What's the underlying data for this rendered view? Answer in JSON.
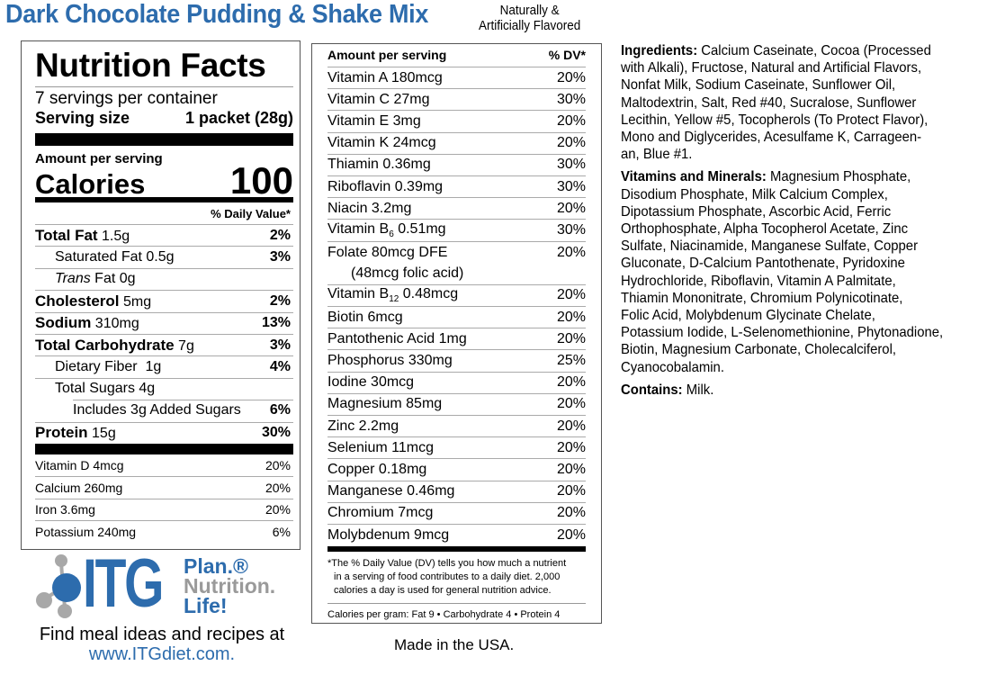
{
  "product": {
    "title": "Dark Chocolate Pudding & Shake Mix",
    "flavor_line1": "Naturally &",
    "flavor_line2": "Artificially Flavored"
  },
  "colors": {
    "brand_blue": "#2d6cad",
    "logo_gray": "#a0a0a0"
  },
  "facts": {
    "title": "Nutrition Facts",
    "servings": "7 servings per container",
    "serving_size_label": "Serving size",
    "serving_size_value": "1 packet (28g)",
    "amount_per_serving": "Amount per serving",
    "calories_label": "Calories",
    "calories_value": "100",
    "dv_header": "% Daily Value*",
    "nutrients": [
      {
        "name": "Total Fat",
        "amount": "1.5g",
        "dv": "2%",
        "bold": true,
        "indent": 0
      },
      {
        "name": "Saturated Fat",
        "amount": "0.5g",
        "dv": "3%",
        "bold": false,
        "indent": 1
      },
      {
        "name": "Trans",
        "amount": "Fat 0g",
        "dv": "",
        "bold": false,
        "indent": 1,
        "italic": true
      },
      {
        "name": "Cholesterol",
        "amount": "5mg",
        "dv": "2%",
        "bold": true,
        "indent": 0
      },
      {
        "name": "Sodium",
        "amount": "310mg",
        "dv": "13%",
        "bold": true,
        "indent": 0
      },
      {
        "name": "Total Carbohydrate",
        "amount": "7g",
        "dv": "3%",
        "bold": true,
        "indent": 0
      },
      {
        "name": "Dietary Fiber",
        "amount": " 1g",
        "dv": "4%",
        "bold": false,
        "indent": 1
      },
      {
        "name": "Total Sugars",
        "amount": "4g",
        "dv": "",
        "bold": false,
        "indent": 1
      },
      {
        "name": "Includes 3g Added Sugars",
        "amount": "",
        "dv": "6%",
        "bold": false,
        "indent": 2
      },
      {
        "name": "Protein",
        "amount": "15g",
        "dv": "30%",
        "bold": true,
        "indent": 0
      }
    ],
    "vitamins": [
      {
        "name": "Vitamin D 4mcg",
        "dv": "20%"
      },
      {
        "name": "Calcium 260mg",
        "dv": "20%"
      },
      {
        "name": "Iron 3.6mg",
        "dv": "20%"
      },
      {
        "name": "Potassium 240mg",
        "dv": "6%"
      }
    ]
  },
  "supplement": {
    "header_left": "Amount per serving",
    "header_right": "% DV*",
    "rows": [
      {
        "name": "Vitamin A  180mcg",
        "dv": "20%"
      },
      {
        "name": "Vitamin C  27mg",
        "dv": "30%"
      },
      {
        "name": "Vitamin E  3mg",
        "dv": "20%"
      },
      {
        "name": "Vitamin K  24mcg",
        "dv": "20%"
      },
      {
        "name": "Thiamin  0.36mg",
        "dv": "30%"
      },
      {
        "name": "Riboflavin  0.39mg",
        "dv": "30%"
      },
      {
        "name": "Niacin  3.2mg",
        "dv": "20%"
      },
      {
        "name": "Vitamin B",
        "sub": "6",
        "rest": " 0.51mg",
        "dv": "30%"
      },
      {
        "name": "Folate 80mcg DFE",
        "line2": "(48mcg folic acid)",
        "dv": "20%"
      },
      {
        "name": "Vitamin B",
        "sub": "12",
        "rest": " 0.48mcg",
        "dv": "20%"
      },
      {
        "name": "Biotin  6mcg",
        "dv": "20%"
      },
      {
        "name": "Pantothenic Acid  1mg",
        "dv": "20%"
      },
      {
        "name": "Phosphorus  330mg",
        "dv": "25%"
      },
      {
        "name": "Iodine  30mcg",
        "dv": "20%"
      },
      {
        "name": "Magnesium  85mg",
        "dv": "20%"
      },
      {
        "name": "Zinc  2.2mg",
        "dv": "20%"
      },
      {
        "name": "Selenium  11mcg",
        "dv": "20%"
      },
      {
        "name": "Copper  0.18mg",
        "dv": "20%"
      },
      {
        "name": "Manganese  0.46mg",
        "dv": "20%"
      },
      {
        "name": "Chromium  7mcg",
        "dv": "20%"
      },
      {
        "name": "Molybdenum  9mcg",
        "dv": "20%"
      }
    ],
    "footnote": [
      "*The % Daily Value (DV) tells you how much a nutrient",
      "in a serving of food contributes to a daily diet. 2,000",
      "calories a day is used for general nutrition advice."
    ],
    "calories_per_gram": "Calories per gram: Fat 9 • Carbohydrate 4 • Protein 4"
  },
  "ingredients": {
    "label": "Ingredients:",
    "lines": [
      " Calcium Caseinate, Cocoa (Processed",
      "with Alkali), Fructose, Natural and Artificial Flavors,",
      "Nonfat Milk, Sodium Caseinate, Sunflower Oil,",
      "Maltodextrin, Salt, Red #40, Sucralose, Sunflower",
      "Lecithin, Yellow #5, Tocopherols (To Protect Flavor),",
      "Mono and Diglycerides, Acesulfame K, Carrageen-",
      "an, Blue #1."
    ],
    "vm_label": "Vitamins and Minerals:",
    "vm_lines": [
      " Magnesium Phosphate,",
      "Disodium Phosphate, Milk Calcium Complex,",
      "Dipotassium Phosphate, Ascorbic Acid, Ferric",
      "Orthophosphate, Alpha Tocopherol Acetate, Zinc",
      "Sulfate, Niacinamide, Manganese Sulfate, Copper",
      "Gluconate, D-Calcium Pantothenate, Pyridoxine",
      "Hydrochloride, Riboflavin, Vitamin A Palmitate,",
      "Thiamin Mononitrate, Chromium Polynicotinate,",
      "Folic Acid, Molybdenum Glycinate Chelate,",
      "Potassium Iodide, L-Selenomethionine, Phytonadione,",
      "Biotin, Magnesium Carbonate, Cholecalciferol,",
      "Cyanocobalamin."
    ],
    "contains_label": "Contains:",
    "contains_value": " Milk."
  },
  "logo": {
    "brand": "ITG",
    "tag1": "Plan.®",
    "tag2": "Nutrition.",
    "tag3": "Life!"
  },
  "footer": {
    "find": "Find meal ideas and recipes at",
    "url": "www.ITGdiet.com.",
    "made": "Made in the USA."
  }
}
